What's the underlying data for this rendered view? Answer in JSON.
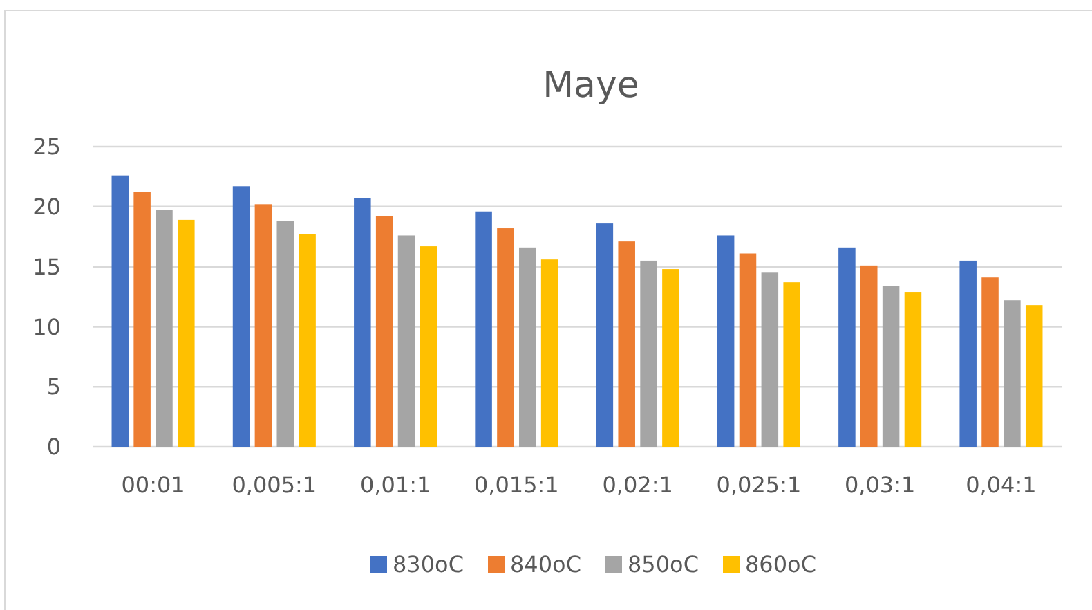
{
  "chart_data": {
    "type": "bar",
    "title": "Maye",
    "categories": [
      "00:01",
      "0,005:1",
      "0,01:1",
      "0,015:1",
      "0,02:1",
      "0,025:1",
      "0,03:1",
      "0,04:1"
    ],
    "series": [
      {
        "name": "830oC",
        "color": "#4472c4",
        "values": [
          22.6,
          21.7,
          20.7,
          19.6,
          18.6,
          17.6,
          16.6,
          15.5
        ]
      },
      {
        "name": "840oC",
        "color": "#ed7d31",
        "values": [
          21.2,
          20.2,
          19.2,
          18.2,
          17.1,
          16.1,
          15.1,
          14.1
        ]
      },
      {
        "name": "850oC",
        "color": "#a5a5a5",
        "values": [
          19.7,
          18.8,
          17.6,
          16.6,
          15.5,
          14.5,
          13.4,
          12.2
        ]
      },
      {
        "name": "860oC",
        "color": "#ffc000",
        "values": [
          18.9,
          17.7,
          16.7,
          15.6,
          14.8,
          13.7,
          12.9,
          11.8
        ]
      }
    ],
    "ylim": [
      0,
      25
    ],
    "yticks": [
      0,
      5,
      10,
      15,
      20,
      25
    ],
    "grid": "y",
    "legend": "bottom"
  }
}
